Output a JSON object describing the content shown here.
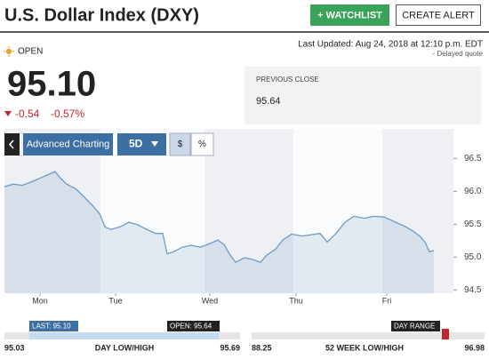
{
  "header": {
    "title": "U.S. Dollar Index (DXY)",
    "watchlist_button": "+ WATCHLIST",
    "alert_button": "CREATE ALERT"
  },
  "quote": {
    "status": "OPEN",
    "last_updated": "Last Updated: Aug 24, 2018 at 12:10 p.m. EDT",
    "delay_note": "- Delayed quote",
    "price": "95.10",
    "change": "-0.54",
    "change_percent": "-0.57%",
    "previous_close_label": "PREVIOUS CLOSE",
    "previous_close": "95.64"
  },
  "toolbar": {
    "advanced": "Advanced Charting",
    "period": "5D",
    "dollar": "$",
    "percent": "%"
  },
  "chart_data": {
    "type": "area",
    "color": "#6f9bc4",
    "x": [
      0,
      0.1,
      0.2,
      0.3,
      0.4,
      0.5,
      0.57,
      0.63,
      0.7,
      0.8,
      0.9,
      1.0,
      1.07,
      1.13,
      1.2,
      1.3,
      1.4,
      1.5,
      1.6,
      1.7,
      1.78,
      1.83,
      1.9,
      2.0,
      2.1,
      2.2,
      2.3,
      2.4,
      2.47,
      2.53,
      2.6,
      2.7,
      2.8,
      2.88,
      2.95,
      3.05,
      3.13,
      3.23,
      3.35,
      3.45,
      3.55,
      3.63,
      3.73,
      3.83,
      3.93,
      4.05,
      4.15,
      4.27,
      4.4,
      4.5,
      4.6,
      4.67,
      4.73,
      4.78,
      4.83
    ],
    "values": [
      96.07,
      96.11,
      96.09,
      96.14,
      96.2,
      96.26,
      96.3,
      96.2,
      96.11,
      96.04,
      95.91,
      95.77,
      95.66,
      95.46,
      95.42,
      95.46,
      95.53,
      95.49,
      95.42,
      95.36,
      95.36,
      95.05,
      95.08,
      95.15,
      95.18,
      95.15,
      95.2,
      95.26,
      95.19,
      95.05,
      94.92,
      94.99,
      94.96,
      94.92,
      95.03,
      95.12,
      95.26,
      95.35,
      95.32,
      95.34,
      95.36,
      95.23,
      95.36,
      95.53,
      95.62,
      95.59,
      95.62,
      95.61,
      95.53,
      95.47,
      95.39,
      95.32,
      95.23,
      95.08,
      95.1
    ],
    "xlim": [
      0,
      5.05
    ],
    "xticks": [
      {
        "value": 0.4,
        "label": "Mon"
      },
      {
        "value": 1.25,
        "label": "Tue"
      },
      {
        "value": 2.31,
        "label": "Wed"
      },
      {
        "value": 3.28,
        "label": "Thu"
      },
      {
        "value": 4.3,
        "label": "Fri"
      }
    ],
    "ylim": [
      94.45,
      96.95
    ],
    "yticks": [
      96.5,
      {
        "value": 96,
        "label": "96.0"
      },
      95.5,
      {
        "value": 95,
        "label": "95.0"
      },
      94.5
    ]
  },
  "ranges": [
    {
      "low": "95.03",
      "label": "DAY LOW/HIGH",
      "high": "95.69",
      "last_tag": "LAST: 95.10",
      "open_tag": "OPEN: 95.64"
    },
    {
      "low": "88.25",
      "label": "52 WEEK LOW/HIGH",
      "high": "96.98",
      "range_tag": "DAY RANGE"
    }
  ]
}
